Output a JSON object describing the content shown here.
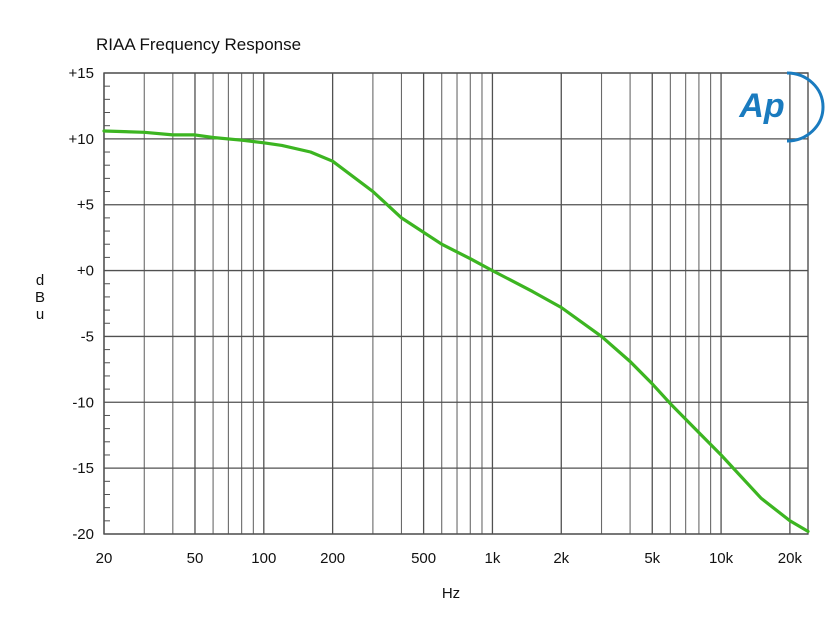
{
  "logo": {
    "text": "Ap",
    "color": "#1a7bbf"
  },
  "chart_data": {
    "type": "line",
    "title": "RIAA Frequency Response",
    "xlabel": "Hz",
    "ylabel": "dBu",
    "x_scale": "log",
    "xlim": [
      20,
      24000
    ],
    "ylim": [
      -20,
      15
    ],
    "x_ticks": [
      20,
      50,
      100,
      200,
      500,
      1000,
      2000,
      5000,
      10000,
      20000
    ],
    "x_tick_labels": [
      "20",
      "50",
      "100",
      "200",
      "500",
      "1k",
      "2k",
      "5k",
      "10k",
      "20k"
    ],
    "y_ticks": [
      15,
      10,
      5,
      0,
      -5,
      -10,
      -15,
      -20
    ],
    "y_tick_labels": [
      "+15",
      "+10",
      "+5",
      "+0",
      "-5",
      "-10",
      "-15",
      "-20"
    ],
    "grid": true,
    "series": [
      {
        "color": "#3cb521",
        "x": [
          20,
          30,
          40,
          50,
          60,
          80,
          100,
          120,
          160,
          200,
          300,
          400,
          600,
          800,
          1000,
          1500,
          2000,
          3000,
          4000,
          5000,
          6000,
          8000,
          10000,
          15000,
          20000,
          24000
        ],
        "y": [
          10.6,
          10.5,
          10.3,
          10.3,
          10.1,
          9.9,
          9.7,
          9.5,
          9.0,
          8.3,
          6.0,
          4.0,
          2.0,
          0.9,
          0.0,
          -1.6,
          -2.8,
          -5.0,
          -6.9,
          -8.6,
          -10.1,
          -12.3,
          -14.0,
          -17.3,
          -19.0,
          -19.8
        ]
      }
    ]
  }
}
